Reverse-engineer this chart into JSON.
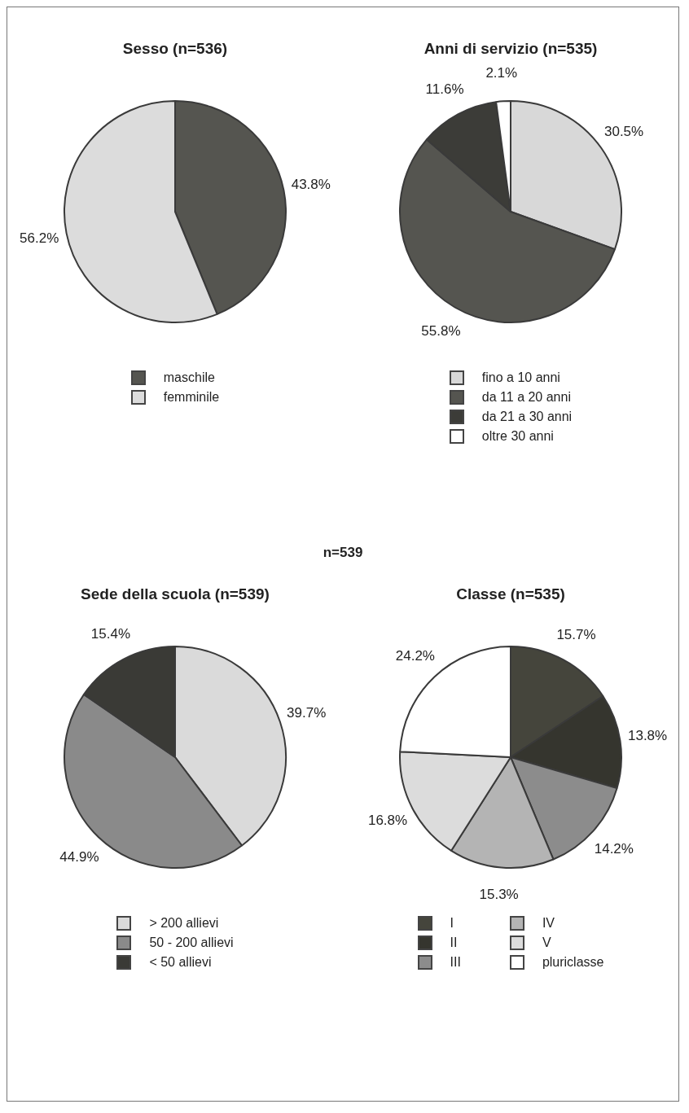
{
  "chart_data": [
    {
      "type": "pie",
      "title": "Sesso (n=536)",
      "categories": [
        "maschile",
        "femminile"
      ],
      "values": [
        43.8,
        56.2
      ],
      "colors": [
        "#555550",
        "#dcdcdc"
      ],
      "value_labels": [
        "43.8%",
        "56.2%"
      ],
      "legend": "bottom"
    },
    {
      "type": "pie",
      "title": "Anni di servizio (n=535)",
      "categories": [
        "fino a 10 anni",
        "da 11 a 20 anni",
        "da 21 a 30 anni",
        "oltre 30 anni"
      ],
      "values": [
        30.5,
        55.8,
        11.6,
        2.1
      ],
      "colors": [
        "#d8d8d8",
        "#555550",
        "#3c3c38",
        "#ffffff"
      ],
      "value_labels": [
        "30.5%",
        "55.8%",
        "11.6%",
        "2.1%"
      ],
      "legend": "bottom"
    },
    {
      "type": "pie",
      "title": "Sede della scuola (n=539)",
      "categories": [
        "> 200 allievi",
        "50 - 200 allievi",
        "< 50 allievi"
      ],
      "values": [
        39.7,
        44.9,
        15.4
      ],
      "colors": [
        "#dadada",
        "#8a8a8a",
        "#3a3a36"
      ],
      "value_labels": [
        "39.7%",
        "44.9%",
        "15.4%"
      ],
      "legend": "bottom",
      "annotations": [
        "n=539"
      ]
    },
    {
      "type": "pie",
      "title": "Classe (n=535)",
      "categories": [
        "I",
        "II",
        "III",
        "IV",
        "V",
        "pluriclasse"
      ],
      "values": [
        15.7,
        13.8,
        14.2,
        15.3,
        16.8,
        24.2
      ],
      "colors": [
        "#45453c",
        "#35352e",
        "#8c8c8c",
        "#b4b4b4",
        "#dcdcdc",
        "#ffffff"
      ],
      "value_labels": [
        "15.7%",
        "13.8%",
        "14.2%",
        "15.3%",
        "16.8%",
        "24.2%"
      ],
      "legend": "bottom"
    }
  ]
}
